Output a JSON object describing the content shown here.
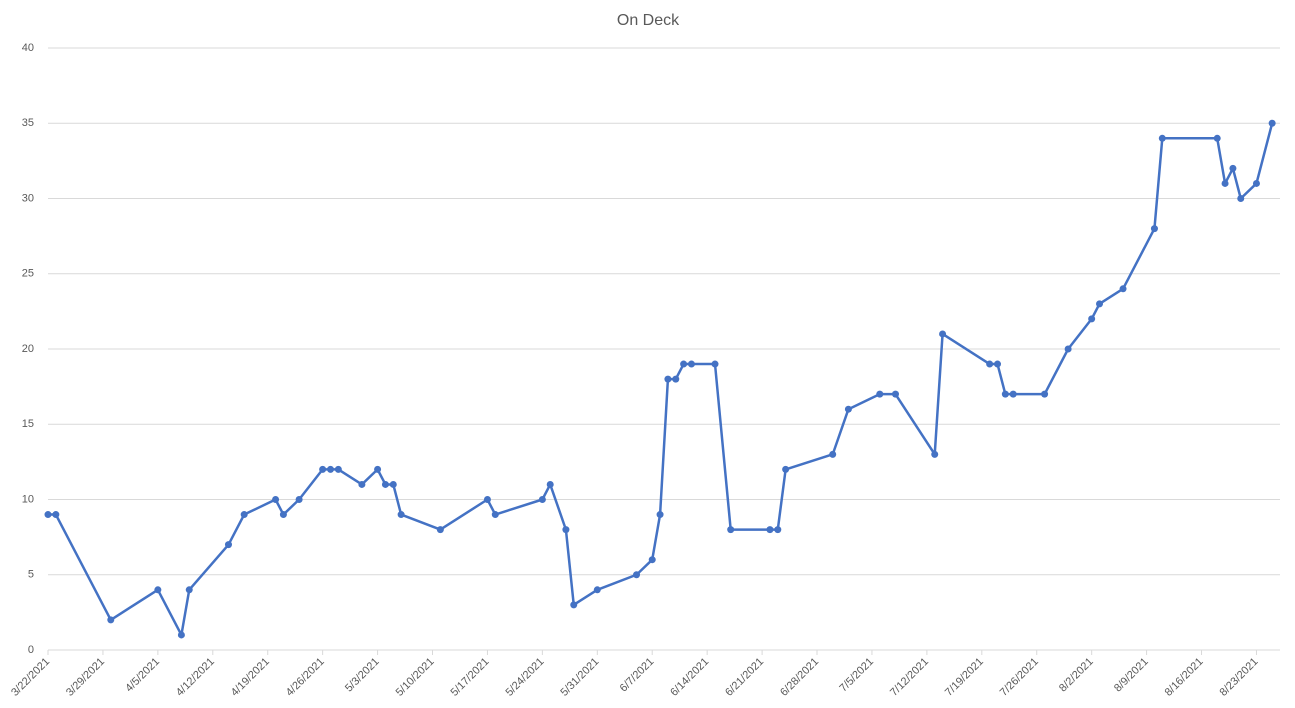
{
  "chart_data": {
    "type": "line",
    "title": "On Deck",
    "x": [
      "3/22/2021",
      "3/23/2021",
      "3/30/2021",
      "4/5/2021",
      "4/8/2021",
      "4/9/2021",
      "4/14/2021",
      "4/16/2021",
      "4/20/2021",
      "4/21/2021",
      "4/23/2021",
      "4/26/2021",
      "4/27/2021",
      "4/28/2021",
      "5/1/2021",
      "5/3/2021",
      "5/4/2021",
      "5/5/2021",
      "5/6/2021",
      "5/11/2021",
      "5/17/2021",
      "5/18/2021",
      "5/24/2021",
      "5/25/2021",
      "5/27/2021",
      "5/28/2021",
      "5/31/2021",
      "6/5/2021",
      "6/7/2021",
      "6/8/2021",
      "6/9/2021",
      "6/10/2021",
      "6/11/2021",
      "6/12/2021",
      "6/15/2021",
      "6/17/2021",
      "6/22/2021",
      "6/23/2021",
      "6/24/2021",
      "6/30/2021",
      "7/2/2021",
      "7/6/2021",
      "7/8/2021",
      "7/13/2021",
      "7/14/2021",
      "7/20/2021",
      "7/21/2021",
      "7/22/2021",
      "7/23/2021",
      "7/27/2021",
      "7/30/2021",
      "8/2/2021",
      "8/3/2021",
      "8/6/2021",
      "8/10/2021",
      "8/11/2021",
      "8/18/2021",
      "8/19/2021",
      "8/20/2021",
      "8/21/2021",
      "8/23/2021",
      "8/25/2021"
    ],
    "series": [
      {
        "name": "On Deck",
        "color": "#4472c4",
        "values": [
          9,
          9,
          2,
          4,
          1,
          4,
          7,
          9,
          10,
          9,
          10,
          12,
          12,
          12,
          11,
          12,
          11,
          11,
          9,
          8,
          10,
          9,
          10,
          11,
          8,
          3,
          4,
          5,
          6,
          9,
          18,
          18,
          19,
          19,
          19,
          8,
          8,
          8,
          12,
          13,
          16,
          17,
          17,
          13,
          21,
          19,
          19,
          17,
          17,
          17,
          20,
          22,
          23,
          24,
          28,
          34,
          34,
          31,
          32,
          30,
          31,
          35
        ]
      }
    ],
    "xlim": [
      "3/22/2021",
      "8/26/2021"
    ],
    "xticks": [
      "3/22/2021",
      "3/29/2021",
      "4/5/2021",
      "4/12/2021",
      "4/19/2021",
      "4/26/2021",
      "5/3/2021",
      "5/10/2021",
      "5/17/2021",
      "5/24/2021",
      "5/31/2021",
      "6/7/2021",
      "6/14/2021",
      "6/21/2021",
      "6/28/2021",
      "7/5/2021",
      "7/12/2021",
      "7/19/2021",
      "7/26/2021",
      "8/2/2021",
      "8/9/2021",
      "8/16/2021",
      "8/23/2021"
    ],
    "ylim": [
      0,
      40
    ],
    "yticks": [
      0,
      5,
      10,
      15,
      20,
      25,
      30,
      35,
      40
    ],
    "grid": true
  }
}
